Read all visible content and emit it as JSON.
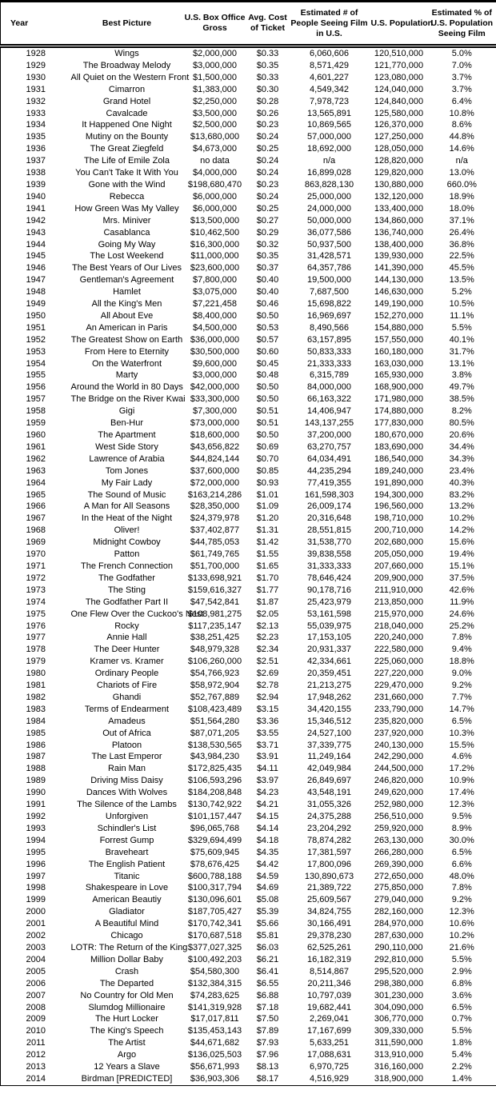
{
  "colors": {
    "background": "#ffffff",
    "text": "#000000",
    "border": "#000000"
  },
  "chart_data": {
    "type": "table",
    "columns": [
      "Year",
      "Best Picture",
      "U.S. Box Office Gross",
      "Avg. Cost of Ticket",
      "Estimated # of People Seeing Film in U.S.",
      "U.S. Population",
      "Estimated % of U.S. Population Seeing Film"
    ],
    "rows": [
      [
        "1928",
        "Wings",
        "$2,000,000",
        "$0.33",
        "6,060,606",
        "120,510,000",
        "5.0%"
      ],
      [
        "1929",
        "The Broadway Melody",
        "$3,000,000",
        "$0.35",
        "8,571,429",
        "121,770,000",
        "7.0%"
      ],
      [
        "1930",
        "All Quiet on the Western Front",
        "$1,500,000",
        "$0.33",
        "4,601,227",
        "123,080,000",
        "3.7%"
      ],
      [
        "1931",
        "Cimarron",
        "$1,383,000",
        "$0.30",
        "4,549,342",
        "124,040,000",
        "3.7%"
      ],
      [
        "1932",
        "Grand Hotel",
        "$2,250,000",
        "$0.28",
        "7,978,723",
        "124,840,000",
        "6.4%"
      ],
      [
        "1933",
        "Cavalcade",
        "$3,500,000",
        "$0.26",
        "13,565,891",
        "125,580,000",
        "10.8%"
      ],
      [
        "1934",
        "It Happened One Night",
        "$2,500,000",
        "$0.23",
        "10,869,565",
        "126,370,000",
        "8.6%"
      ],
      [
        "1935",
        "Mutiny on the Bounty",
        "$13,680,000",
        "$0.24",
        "57,000,000",
        "127,250,000",
        "44.8%"
      ],
      [
        "1936",
        "The Great Ziegfeld",
        "$4,673,000",
        "$0.25",
        "18,692,000",
        "128,050,000",
        "14.6%"
      ],
      [
        "1937",
        "The Life of Emile Zola",
        "no data",
        "$0.24",
        "n/a",
        "128,820,000",
        "n/a"
      ],
      [
        "1938",
        "You Can't Take It With You",
        "$4,000,000",
        "$0.24",
        "16,899,028",
        "129,820,000",
        "13.0%"
      ],
      [
        "1939",
        "Gone with the Wind",
        "$198,680,470",
        "$0.23",
        "863,828,130",
        "130,880,000",
        "660.0%"
      ],
      [
        "1940",
        "Rebecca",
        "$6,000,000",
        "$0.24",
        "25,000,000",
        "132,120,000",
        "18.9%"
      ],
      [
        "1941",
        "How Green Was My Valley",
        "$6,000,000",
        "$0.25",
        "24,000,000",
        "133,400,000",
        "18.0%"
      ],
      [
        "1942",
        "Mrs. Miniver",
        "$13,500,000",
        "$0.27",
        "50,000,000",
        "134,860,000",
        "37.1%"
      ],
      [
        "1943",
        "Casablanca",
        "$10,462,500",
        "$0.29",
        "36,077,586",
        "136,740,000",
        "26.4%"
      ],
      [
        "1944",
        "Going My Way",
        "$16,300,000",
        "$0.32",
        "50,937,500",
        "138,400,000",
        "36.8%"
      ],
      [
        "1945",
        "The Lost Weekend",
        "$11,000,000",
        "$0.35",
        "31,428,571",
        "139,930,000",
        "22.5%"
      ],
      [
        "1946",
        "The Best Years of Our Lives",
        "$23,600,000",
        "$0.37",
        "64,357,786",
        "141,390,000",
        "45.5%"
      ],
      [
        "1947",
        "Gentleman's Agreement",
        "$7,800,000",
        "$0.40",
        "19,500,000",
        "144,130,000",
        "13.5%"
      ],
      [
        "1948",
        "Hamlet",
        "$3,075,000",
        "$0.40",
        "7,687,500",
        "146,630,000",
        "5.2%"
      ],
      [
        "1949",
        "All the King's Men",
        "$7,221,458",
        "$0.46",
        "15,698,822",
        "149,190,000",
        "10.5%"
      ],
      [
        "1950",
        "All About Eve",
        "$8,400,000",
        "$0.50",
        "16,969,697",
        "152,270,000",
        "11.1%"
      ],
      [
        "1951",
        "An American in Paris",
        "$4,500,000",
        "$0.53",
        "8,490,566",
        "154,880,000",
        "5.5%"
      ],
      [
        "1952",
        "The Greatest Show on Earth",
        "$36,000,000",
        "$0.57",
        "63,157,895",
        "157,550,000",
        "40.1%"
      ],
      [
        "1953",
        "From Here to Eternity",
        "$30,500,000",
        "$0.60",
        "50,833,333",
        "160,180,000",
        "31.7%"
      ],
      [
        "1954",
        "On the Waterfront",
        "$9,600,000",
        "$0.45",
        "21,333,333",
        "163,030,000",
        "13.1%"
      ],
      [
        "1955",
        "Marty",
        "$3,000,000",
        "$0.48",
        "6,315,789",
        "165,930,000",
        "3.8%"
      ],
      [
        "1956",
        "Around the World in 80 Days",
        "$42,000,000",
        "$0.50",
        "84,000,000",
        "168,900,000",
        "49.7%"
      ],
      [
        "1957",
        "The Bridge on the River Kwai",
        "$33,300,000",
        "$0.50",
        "66,163,322",
        "171,980,000",
        "38.5%"
      ],
      [
        "1958",
        "Gigi",
        "$7,300,000",
        "$0.51",
        "14,406,947",
        "174,880,000",
        "8.2%"
      ],
      [
        "1959",
        "Ben-Hur",
        "$73,000,000",
        "$0.51",
        "143,137,255",
        "177,830,000",
        "80.5%"
      ],
      [
        "1960",
        "The Apartment",
        "$18,600,000",
        "$0.50",
        "37,200,000",
        "180,670,000",
        "20.6%"
      ],
      [
        "1961",
        "West Side Story",
        "$43,656,822",
        "$0.69",
        "63,270,757",
        "183,690,000",
        "34.4%"
      ],
      [
        "1962",
        "Lawrence of Arabia",
        "$44,824,144",
        "$0.70",
        "64,034,491",
        "186,540,000",
        "34.3%"
      ],
      [
        "1963",
        "Tom Jones",
        "$37,600,000",
        "$0.85",
        "44,235,294",
        "189,240,000",
        "23.4%"
      ],
      [
        "1964",
        "My Fair Lady",
        "$72,000,000",
        "$0.93",
        "77,419,355",
        "191,890,000",
        "40.3%"
      ],
      [
        "1965",
        "The Sound of Music",
        "$163,214,286",
        "$1.01",
        "161,598,303",
        "194,300,000",
        "83.2%"
      ],
      [
        "1966",
        "A Man for All Seasons",
        "$28,350,000",
        "$1.09",
        "26,009,174",
        "196,560,000",
        "13.2%"
      ],
      [
        "1967",
        "In the Heat of the Night",
        "$24,379,978",
        "$1.20",
        "20,316,648",
        "198,710,000",
        "10.2%"
      ],
      [
        "1968",
        "Oliver!",
        "$37,402,877",
        "$1.31",
        "28,551,815",
        "200,710,000",
        "14.2%"
      ],
      [
        "1969",
        "Midnight Cowboy",
        "$44,785,053",
        "$1.42",
        "31,538,770",
        "202,680,000",
        "15.6%"
      ],
      [
        "1970",
        "Patton",
        "$61,749,765",
        "$1.55",
        "39,838,558",
        "205,050,000",
        "19.4%"
      ],
      [
        "1971",
        "The French Connection",
        "$51,700,000",
        "$1.65",
        "31,333,333",
        "207,660,000",
        "15.1%"
      ],
      [
        "1972",
        "The Godfather",
        "$133,698,921",
        "$1.70",
        "78,646,424",
        "209,900,000",
        "37.5%"
      ],
      [
        "1973",
        "The Sting",
        "$159,616,327",
        "$1.77",
        "90,178,716",
        "211,910,000",
        "42.6%"
      ],
      [
        "1974",
        "The Godfather Part II",
        "$47,542,841",
        "$1.87",
        "25,423,979",
        "213,850,000",
        "11.9%"
      ],
      [
        "1975",
        "One Flew Over the Cuckoo's Nest",
        "$108,981,275",
        "$2.05",
        "53,161,598",
        "215,970,000",
        "24.6%"
      ],
      [
        "1976",
        "Rocky",
        "$117,235,147",
        "$2.13",
        "55,039,975",
        "218,040,000",
        "25.2%"
      ],
      [
        "1977",
        "Annie Hall",
        "$38,251,425",
        "$2.23",
        "17,153,105",
        "220,240,000",
        "7.8%"
      ],
      [
        "1978",
        "The Deer Hunter",
        "$48,979,328",
        "$2.34",
        "20,931,337",
        "222,580,000",
        "9.4%"
      ],
      [
        "1979",
        "Kramer vs. Kramer",
        "$106,260,000",
        "$2.51",
        "42,334,661",
        "225,060,000",
        "18.8%"
      ],
      [
        "1980",
        "Ordinary People",
        "$54,766,923",
        "$2.69",
        "20,359,451",
        "227,220,000",
        "9.0%"
      ],
      [
        "1981",
        "Chariots of Fire",
        "$58,972,904",
        "$2.78",
        "21,213,275",
        "229,470,000",
        "9.2%"
      ],
      [
        "1982",
        "Ghandi",
        "$52,767,889",
        "$2.94",
        "17,948,262",
        "231,660,000",
        "7.7%"
      ],
      [
        "1983",
        "Terms of Endearment",
        "$108,423,489",
        "$3.15",
        "34,420,155",
        "233,790,000",
        "14.7%"
      ],
      [
        "1984",
        "Amadeus",
        "$51,564,280",
        "$3.36",
        "15,346,512",
        "235,820,000",
        "6.5%"
      ],
      [
        "1985",
        "Out of Africa",
        "$87,071,205",
        "$3.55",
        "24,527,100",
        "237,920,000",
        "10.3%"
      ],
      [
        "1986",
        "Platoon",
        "$138,530,565",
        "$3.71",
        "37,339,775",
        "240,130,000",
        "15.5%"
      ],
      [
        "1987",
        "The Last Emperor",
        "$43,984,230",
        "$3.91",
        "11,249,164",
        "242,290,000",
        "4.6%"
      ],
      [
        "1988",
        "Rain Man",
        "$172,825,435",
        "$4.11",
        "42,049,984",
        "244,500,000",
        "17.2%"
      ],
      [
        "1989",
        "Driving Miss Daisy",
        "$106,593,296",
        "$3.97",
        "26,849,697",
        "246,820,000",
        "10.9%"
      ],
      [
        "1990",
        "Dances With Wolves",
        "$184,208,848",
        "$4.23",
        "43,548,191",
        "249,620,000",
        "17.4%"
      ],
      [
        "1991",
        "The Silence of the Lambs",
        "$130,742,922",
        "$4.21",
        "31,055,326",
        "252,980,000",
        "12.3%"
      ],
      [
        "1992",
        "Unforgiven",
        "$101,157,447",
        "$4.15",
        "24,375,288",
        "256,510,000",
        "9.5%"
      ],
      [
        "1993",
        "Schindler's List",
        "$96,065,768",
        "$4.14",
        "23,204,292",
        "259,920,000",
        "8.9%"
      ],
      [
        "1994",
        "Forrest Gump",
        "$329,694,499",
        "$4.18",
        "78,874,282",
        "263,130,000",
        "30.0%"
      ],
      [
        "1995",
        "Braveheart",
        "$75,609,945",
        "$4.35",
        "17,381,597",
        "266,280,000",
        "6.5%"
      ],
      [
        "1996",
        "The English Patient",
        "$78,676,425",
        "$4.42",
        "17,800,096",
        "269,390,000",
        "6.6%"
      ],
      [
        "1997",
        "Titanic",
        "$600,788,188",
        "$4.59",
        "130,890,673",
        "272,650,000",
        "48.0%"
      ],
      [
        "1998",
        "Shakespeare in Love",
        "$100,317,794",
        "$4.69",
        "21,389,722",
        "275,850,000",
        "7.8%"
      ],
      [
        "1999",
        "American Beautiy",
        "$130,096,601",
        "$5.08",
        "25,609,567",
        "279,040,000",
        "9.2%"
      ],
      [
        "2000",
        "Gladiator",
        "$187,705,427",
        "$5.39",
        "34,824,755",
        "282,160,000",
        "12.3%"
      ],
      [
        "2001",
        "A Beautiful Mind",
        "$170,742,341",
        "$5.66",
        "30,166,491",
        "284,970,000",
        "10.6%"
      ],
      [
        "2002",
        "Chicago",
        "$170,687,518",
        "$5.81",
        "29,378,230",
        "287,630,000",
        "10.2%"
      ],
      [
        "2003",
        "LOTR: The Return of the King",
        "$377,027,325",
        "$6.03",
        "62,525,261",
        "290,110,000",
        "21.6%"
      ],
      [
        "2004",
        "Million Dollar Baby",
        "$100,492,203",
        "$6.21",
        "16,182,319",
        "292,810,000",
        "5.5%"
      ],
      [
        "2005",
        "Crash",
        "$54,580,300",
        "$6.41",
        "8,514,867",
        "295,520,000",
        "2.9%"
      ],
      [
        "2006",
        "The Departed",
        "$132,384,315",
        "$6.55",
        "20,211,346",
        "298,380,000",
        "6.8%"
      ],
      [
        "2007",
        "No Country for Old Men",
        "$74,283,625",
        "$6.88",
        "10,797,039",
        "301,230,000",
        "3.6%"
      ],
      [
        "2008",
        "Slumdog Millionaire",
        "$141,319,928",
        "$7.18",
        "19,682,441",
        "304,090,000",
        "6.5%"
      ],
      [
        "2009",
        "The Hurt Locker",
        "$17,017,811",
        "$7.50",
        "2,269,041",
        "306,770,000",
        "0.7%"
      ],
      [
        "2010",
        "The King's Speech",
        "$135,453,143",
        "$7.89",
        "17,167,699",
        "309,330,000",
        "5.5%"
      ],
      [
        "2011",
        "The Artist",
        "$44,671,682",
        "$7.93",
        "5,633,251",
        "311,590,000",
        "1.8%"
      ],
      [
        "2012",
        "Argo",
        "$136,025,503",
        "$7.96",
        "17,088,631",
        "313,910,000",
        "5.4%"
      ],
      [
        "2013",
        "12 Years a Slave",
        "$56,671,993",
        "$8.13",
        "6,970,725",
        "316,160,000",
        "2.2%"
      ],
      [
        "2014",
        "Birdman [PREDICTED]",
        "$36,903,306",
        "$8.17",
        "4,516,929",
        "318,900,000",
        "1.4%"
      ]
    ]
  }
}
